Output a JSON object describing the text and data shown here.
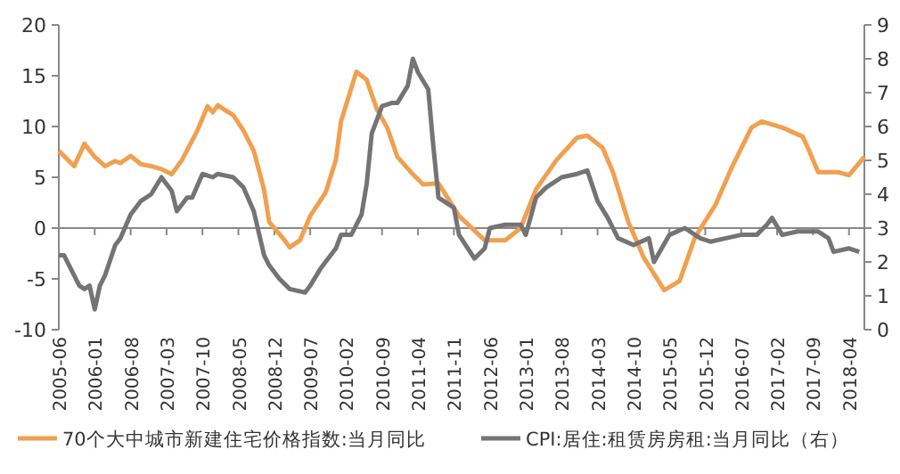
{
  "chart_data": {
    "type": "line",
    "xlim": [
      "2005-06",
      "2018-07"
    ],
    "xticks": [
      "2005-06",
      "2006-01",
      "2006-08",
      "2007-03",
      "2007-10",
      "2008-05",
      "2008-12",
      "2009-07",
      "2010-02",
      "2010-09",
      "2011-04",
      "2011-11",
      "2012-06",
      "2013-01",
      "2013-08",
      "2014-03",
      "2014-10",
      "2015-05",
      "2015-12",
      "2016-07",
      "2017-02",
      "2017-09",
      "2018-04"
    ],
    "ylim": [
      -10,
      20
    ],
    "yticks": [
      -10,
      -5,
      0,
      5,
      10,
      15,
      20
    ],
    "y2lim": [
      0,
      9
    ],
    "y2ticks": [
      0,
      1,
      2,
      3,
      4,
      5,
      6,
      7,
      8,
      9
    ],
    "legend": "bottom",
    "marker": "none",
    "line_style": "solid",
    "series": [
      {
        "name": "70个大中城市新建住宅价格指数:当月同比",
        "color": "#f0a050",
        "x": [
          "2005-06",
          "2005-09",
          "2005-11",
          "2006-01",
          "2006-03",
          "2006-05",
          "2006-06",
          "2006-08",
          "2006-10",
          "2006-12",
          "2007-02",
          "2007-04",
          "2007-06",
          "2007-09",
          "2007-11",
          "2007-12",
          "2008-01",
          "2008-04",
          "2008-06",
          "2008-08",
          "2008-10",
          "2008-11",
          "2009-02",
          "2009-03",
          "2009-05",
          "2009-07",
          "2009-10",
          "2009-12",
          "2010-01",
          "2010-04",
          "2010-06",
          "2010-08",
          "2010-10",
          "2010-12",
          "2011-03",
          "2011-05",
          "2011-08",
          "2011-12",
          "2012-05",
          "2012-09",
          "2012-12",
          "2013-03",
          "2013-07",
          "2013-11",
          "2014-01",
          "2014-04",
          "2014-06",
          "2014-09",
          "2014-12",
          "2015-04",
          "2015-07",
          "2015-10",
          "2016-02",
          "2016-05",
          "2016-09",
          "2016-11",
          "2017-03",
          "2017-07",
          "2017-08",
          "2017-10",
          "2018-02",
          "2018-04",
          "2018-07"
        ],
        "values": [
          7.6,
          6.1,
          8.3,
          7.0,
          6.1,
          6.6,
          6.4,
          7.1,
          6.3,
          6.1,
          5.8,
          5.3,
          6.7,
          9.6,
          12.0,
          11.4,
          12.1,
          11.1,
          9.6,
          7.6,
          3.8,
          0.6,
          -1.2,
          -1.9,
          -1.2,
          1.2,
          3.5,
          6.7,
          10.5,
          15.4,
          14.6,
          11.7,
          9.9,
          7.0,
          5.3,
          4.3,
          4.4,
          1.2,
          -1.2,
          -1.2,
          0,
          3.8,
          6.7,
          8.9,
          9.1,
          7.9,
          5.5,
          0.6,
          -2.9,
          -6.1,
          -5.2,
          -0.9,
          2.3,
          5.8,
          9.9,
          10.5,
          9.9,
          9.0,
          7.9,
          5.5,
          5.5,
          5.2,
          7.0
        ]
      },
      {
        "name": "CPI:居住:租赁房房租:当月同比（右）",
        "color": "#747474",
        "axis": "y2",
        "x": [
          "2005-06",
          "2005-07",
          "2005-10",
          "2005-11",
          "2005-12",
          "2006-01",
          "2006-02",
          "2006-03",
          "2006-05",
          "2006-06",
          "2006-08",
          "2006-10",
          "2006-12",
          "2007-02",
          "2007-04",
          "2007-05",
          "2007-07",
          "2007-08",
          "2007-10",
          "2007-12",
          "2008-01",
          "2008-04",
          "2008-06",
          "2008-08",
          "2008-10",
          "2008-11",
          "2009-01",
          "2009-03",
          "2009-06",
          "2009-07",
          "2009-09",
          "2009-12",
          "2010-01",
          "2010-03",
          "2010-05",
          "2010-06",
          "2010-07",
          "2010-09",
          "2010-11",
          "2010-12",
          "2011-02",
          "2011-03",
          "2011-04",
          "2011-06",
          "2011-07",
          "2011-08",
          "2011-10",
          "2011-11",
          "2011-12",
          "2012-03",
          "2012-05",
          "2012-06",
          "2012-09",
          "2012-12",
          "2013-01",
          "2013-03",
          "2013-05",
          "2013-08",
          "2013-11",
          "2014-01",
          "2014-03",
          "2014-05",
          "2014-07",
          "2014-10",
          "2015-01",
          "2015-02",
          "2015-05",
          "2015-08",
          "2015-11",
          "2016-01",
          "2016-04",
          "2016-07",
          "2016-10",
          "2016-12",
          "2017-01",
          "2017-03",
          "2017-06",
          "2017-10",
          "2017-12",
          "2018-01",
          "2018-04",
          "2018-06"
        ],
        "values": [
          2.2,
          2.2,
          1.3,
          1.2,
          1.3,
          0.6,
          1.3,
          1.6,
          2.5,
          2.7,
          3.4,
          3.8,
          4.0,
          4.5,
          4.1,
          3.5,
          3.9,
          3.9,
          4.6,
          4.5,
          4.6,
          4.5,
          4.2,
          3.5,
          2.2,
          1.9,
          1.5,
          1.2,
          1.1,
          1.3,
          1.8,
          2.4,
          2.8,
          2.8,
          3.4,
          4.3,
          5.8,
          6.6,
          6.7,
          6.7,
          7.2,
          8.0,
          7.6,
          7.1,
          5.4,
          3.9,
          3.7,
          3.6,
          2.8,
          2.1,
          2.4,
          3.0,
          3.1,
          3.1,
          2.8,
          3.9,
          4.2,
          4.5,
          4.6,
          4.7,
          3.8,
          3.3,
          2.7,
          2.5,
          2.7,
          2.0,
          2.8,
          3.0,
          2.7,
          2.6,
          2.7,
          2.8,
          2.8,
          3.1,
          3.3,
          2.8,
          2.9,
          2.9,
          2.7,
          2.3,
          2.4,
          2.3
        ]
      }
    ]
  }
}
